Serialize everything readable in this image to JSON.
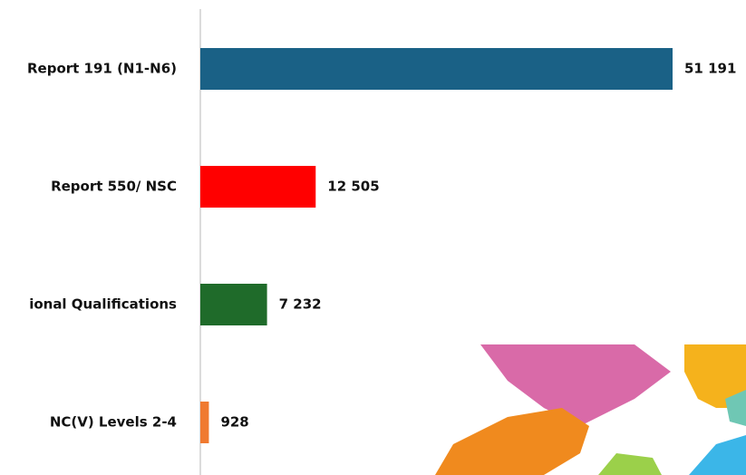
{
  "chart_data": {
    "type": "hbar",
    "categories": [
      "Report 191 (N1-N6)",
      "Report 550/ NSC",
      "ional Qualifications",
      "NC(V) Levels 2-4"
    ],
    "values": [
      51191,
      12505,
      7232,
      928
    ],
    "value_labels": [
      "51 191",
      "12 505",
      "7 232",
      "928"
    ],
    "colors": [
      "#1a6186",
      "#ff0000",
      "#1f6b2a",
      "#f07a30"
    ]
  }
}
